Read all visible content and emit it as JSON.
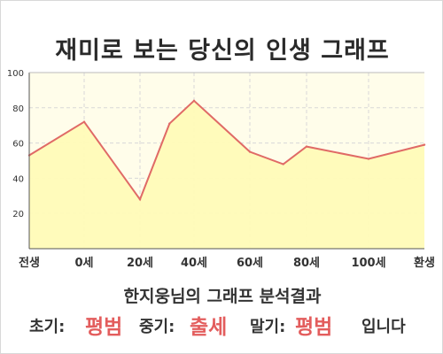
{
  "title": "재미로 보는 당신의 인생 그래프",
  "chart_data": {
    "type": "area",
    "title": "재미로 보는 당신의 인생 그래프",
    "x_tick_labels": [
      "전생",
      "0세",
      "20세",
      "40세",
      "60세",
      "80세",
      "100세",
      "환생"
    ],
    "y_ticks": [
      20,
      40,
      60,
      80,
      100
    ],
    "ylim": [
      0,
      100
    ],
    "grid": true,
    "points": [
      {
        "x": "전생",
        "y": 53
      },
      {
        "x": "0세",
        "y": 72
      },
      {
        "x": "20세",
        "y": 28
      },
      {
        "x": "30세",
        "y": 71
      },
      {
        "x": "40세",
        "y": 84
      },
      {
        "x": "60세",
        "y": 55
      },
      {
        "x": "70세",
        "y": 48
      },
      {
        "x": "80세",
        "y": 58
      },
      {
        "x": "100세",
        "y": 51
      },
      {
        "x": "환생",
        "y": 59
      }
    ],
    "colors": {
      "line": "#e06a66",
      "fill": "#fffbb8",
      "plot_bg": "#fffdea",
      "grid": "#d8d8d8"
    }
  },
  "summary": {
    "title": "한지웅님의 그래프 분석결과",
    "early_label": "초기:",
    "early_value": "평범",
    "middle_label": "중기:",
    "middle_value": "출세",
    "late_label": "말기:",
    "late_value": "평범",
    "ending": "입니다"
  }
}
